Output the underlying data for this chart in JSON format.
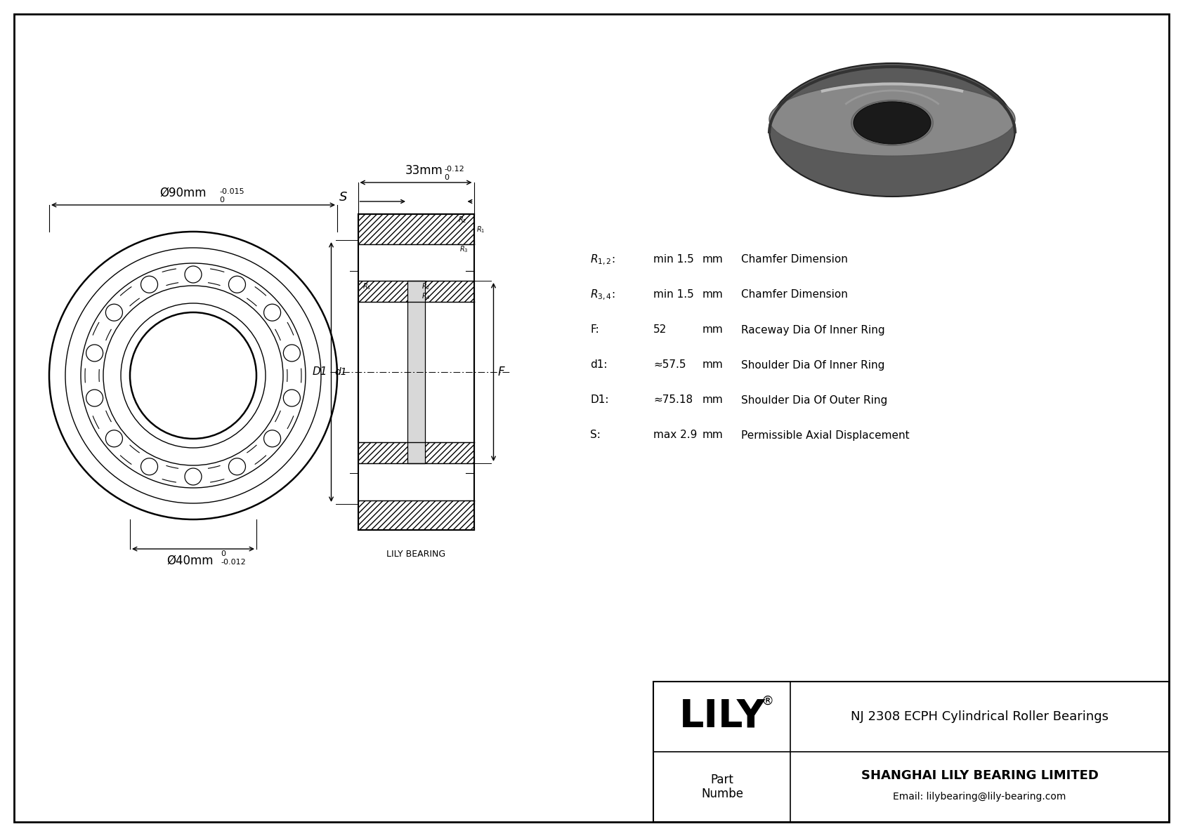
{
  "bg_color": "#ffffff",
  "bc": "#000000",
  "lc": "#555555",
  "title": "NJ 2308 ECPH Cylindrical Roller Bearings",
  "company": "SHANGHAI LILY BEARING LIMITED",
  "email": "Email: lilybearing@lily-bearing.com",
  "brand": "LILY",
  "part_label": "Part\nNumbe",
  "watermark": "LILY BEARING",
  "dim_outer_main": "Ø90mm",
  "dim_outer_tol": "-0.015",
  "dim_outer_sup": "0",
  "dim_inner_main": "Ø40mm",
  "dim_inner_tol": "-0.012",
  "dim_inner_sup": "0",
  "dim_width_main": "33mm",
  "dim_width_tol": "-0.12",
  "dim_width_sup": "0",
  "specs": [
    {
      "param": "R1,2:",
      "value": "min 1.5",
      "unit": "mm",
      "desc": "Chamfer Dimension"
    },
    {
      "param": "R3,4:",
      "value": "min 1.5",
      "unit": "mm",
      "desc": "Chamfer Dimension"
    },
    {
      "param": "F:",
      "value": "52",
      "unit": "mm",
      "desc": "Raceway Dia Of Inner Ring"
    },
    {
      "param": "d1:",
      "value": "≈57.5",
      "unit": "mm",
      "desc": "Shoulder Dia Of Inner Ring"
    },
    {
      "param": "D1:",
      "value": "≈75.18",
      "unit": "mm",
      "desc": "Shoulder Dia Of Outer Ring"
    },
    {
      "param": "S:",
      "value": "max 2.9",
      "unit": "mm",
      "desc": "Permissible Axial Displacement"
    }
  ],
  "fig_w": 16.84,
  "fig_h": 11.91,
  "dpi": 100
}
